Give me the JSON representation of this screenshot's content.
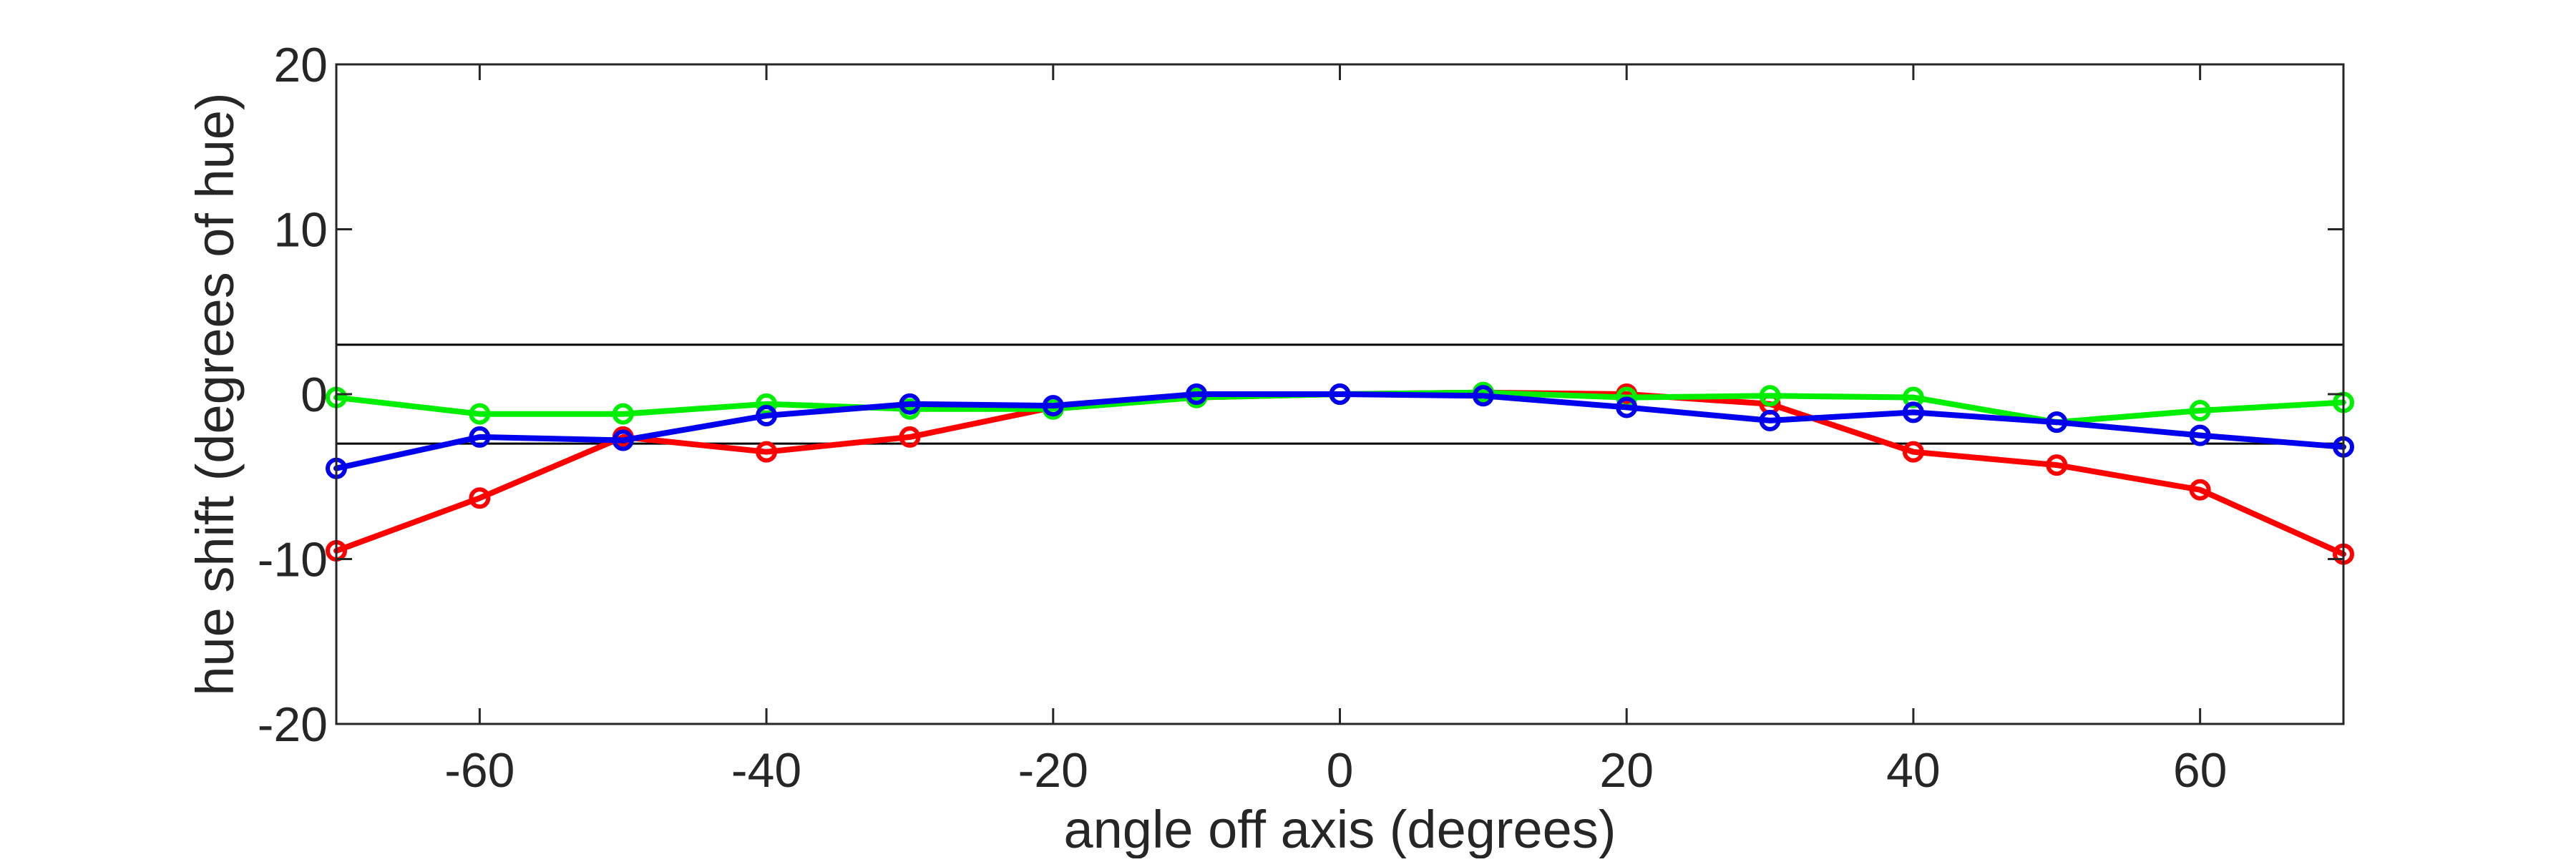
{
  "chart_data": {
    "type": "line",
    "xlabel": "angle off axis (degrees)",
    "ylabel": "hue shift (degrees of hue)",
    "xlim": [
      -70,
      70
    ],
    "ylim": [
      -20,
      20
    ],
    "x_ticks": [
      -60,
      -40,
      -20,
      0,
      20,
      40,
      60
    ],
    "y_ticks": [
      -20,
      -10,
      0,
      10,
      20
    ],
    "x_tick_labels": [
      "-60",
      "-40",
      "-20",
      "0",
      "20",
      "40",
      "60"
    ],
    "y_tick_labels": [
      "-20",
      "-10",
      "0",
      "10",
      "20"
    ],
    "grid": false,
    "reference_lines": [
      3,
      -3
    ],
    "x": [
      -70,
      -60,
      -50,
      -40,
      -30,
      -20,
      -10,
      0,
      10,
      20,
      30,
      40,
      50,
      60,
      70
    ],
    "series": [
      {
        "color": "#ff0000",
        "values": [
          -9.5,
          -6.3,
          -2.6,
          -3.5,
          -2.6,
          -0.8,
          -0.2,
          0,
          0.1,
          0,
          -0.6,
          -3.5,
          -4.3,
          -5.8,
          -9.7
        ]
      },
      {
        "color": "#00ee00",
        "values": [
          -0.2,
          -1.2,
          -1.2,
          -0.6,
          -0.9,
          -0.9,
          -0.2,
          0,
          0.1,
          -0.2,
          -0.1,
          -0.2,
          -1.7,
          -1.0,
          -0.5
        ]
      },
      {
        "color": "#0000ee",
        "values": [
          -4.5,
          -2.6,
          -2.8,
          -1.3,
          -0.6,
          -0.7,
          0,
          0,
          -0.1,
          -0.8,
          -1.6,
          -1.1,
          -1.7,
          -2.5,
          -3.2
        ]
      }
    ]
  }
}
